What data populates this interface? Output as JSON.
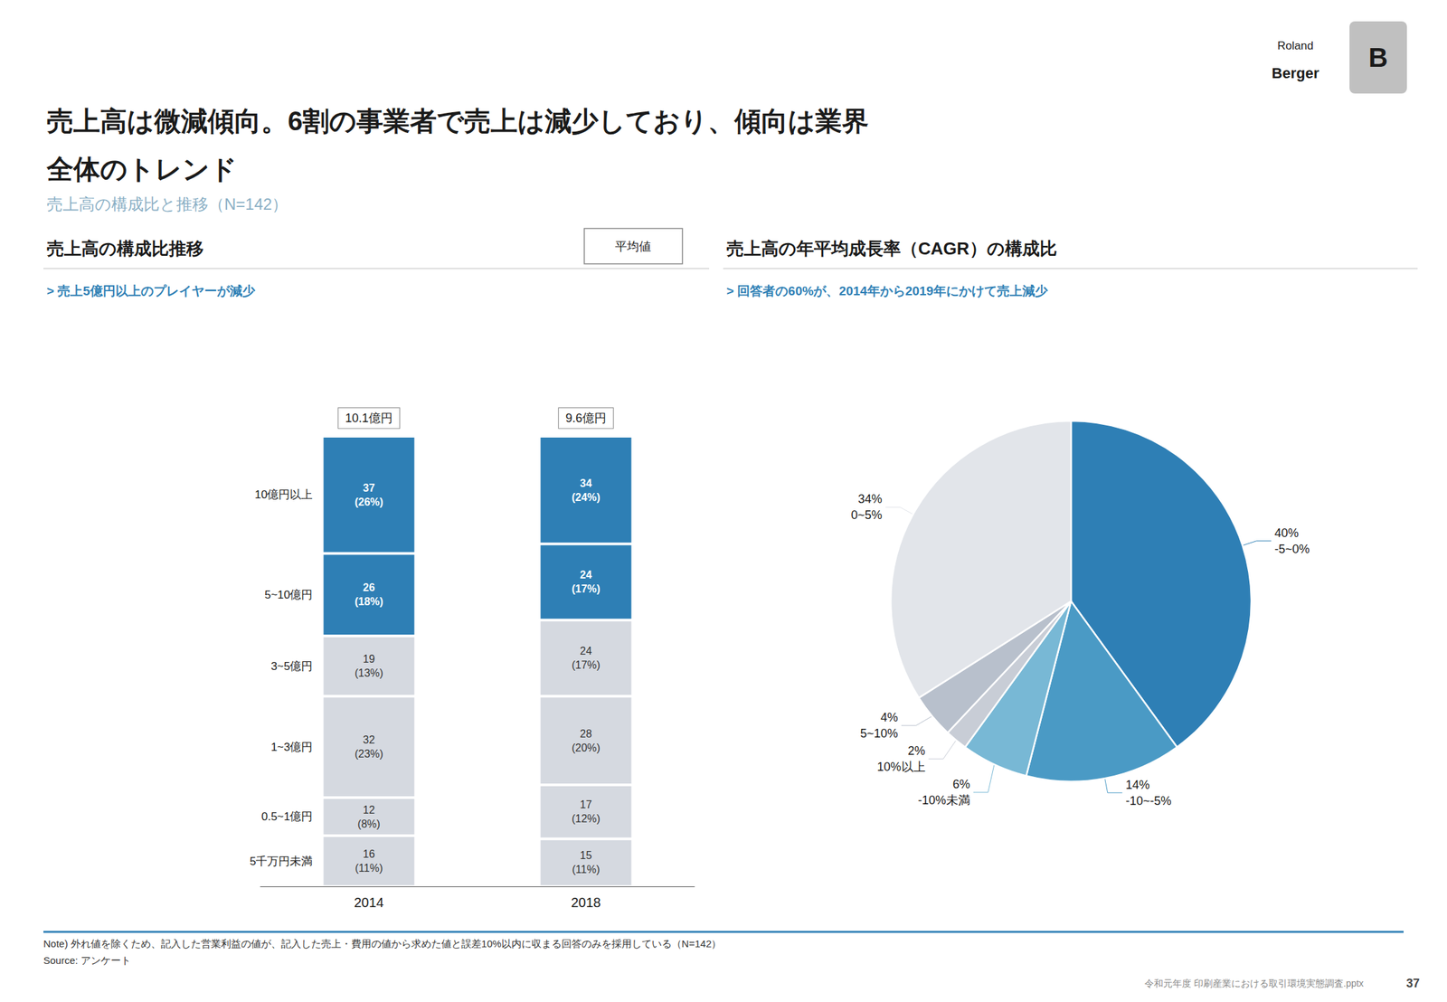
{
  "title": "売上高は微減傾向。6割の事業者で売上は減少しており、傾向は業界\n全体のトレンド",
  "subtitle": "売上高の構成比と推移（N=142）",
  "annotations": [
    "Roland",
    "Berger",
    "B",
    "Note) 外れ値を除くため、記入した営業利益の値が、記入した売上・費用の値から求めた値と誤差10%以内に収まる回答のみを採用している（N=142）",
    "Source: アンケート",
    "令和元年度 印刷産業における取引環境実態調査.pptx",
    "37"
  ],
  "chart_data": [
    {
      "type": "bar",
      "stacked": true,
      "title": "売上高の構成比推移",
      "subtitle": "> 売上5億円以上のプレイヤーが減少",
      "annotations": [
        "平均値",
        {
          "text": "10.1億円",
          "category": "2014"
        },
        {
          "text": "9.6億円",
          "category": "2018"
        }
      ],
      "categories": [
        "2014",
        "2018"
      ],
      "series": [
        {
          "name": "10億円以上",
          "color": "#2e7fb5",
          "values": [
            37,
            34
          ],
          "value_labels": [
            "37\n(26%)",
            "34\n(24%)"
          ]
        },
        {
          "name": "5~10億円",
          "color": "#2e7fb5",
          "values": [
            26,
            24
          ],
          "value_labels": [
            "26\n(18%)",
            "24\n(17%)"
          ]
        },
        {
          "name": "3~5億円",
          "color": "#d5d9e0",
          "values": [
            19,
            24
          ],
          "value_labels": [
            "19\n(13%)",
            "24\n(17%)"
          ]
        },
        {
          "name": "1~3億円",
          "color": "#d5d9e0",
          "values": [
            32,
            28
          ],
          "value_labels": [
            "32\n(23%)",
            "28\n(20%)"
          ]
        },
        {
          "name": "0.5~1億円",
          "color": "#d5d9e0",
          "values": [
            12,
            17
          ],
          "value_labels": [
            "12\n(8%)",
            "17\n(12%)"
          ]
        },
        {
          "name": "5千万円未満",
          "color": "#d5d9e0",
          "values": [
            16,
            15
          ],
          "value_labels": [
            "16\n(11%)",
            "15\n(11%)"
          ]
        }
      ],
      "data_labels": true,
      "ylim": [
        0,
        170
      ],
      "tick_labels": "x",
      "grid": false
    },
    {
      "type": "pie",
      "title": "売上高の年平均成長率（CAGR）の構成比",
      "subtitle": "> 回答者の60%が、2014年から2019年にかけて売上減少",
      "categories": [
        "-5~0%",
        "-10~-5%",
        "-10%未満",
        "10%以上",
        "5~10%",
        "0~5%"
      ],
      "values": [
        40,
        14,
        6,
        2,
        4,
        34
      ],
      "value_labels": [
        "40%",
        "14%",
        "6%",
        "2%",
        "4%",
        "34%"
      ],
      "colors": [
        "#2e7fb5",
        "#4a9ac5",
        "#78b8d5",
        "#c8cdd6",
        "#b8c0cc",
        "#e2e5ea"
      ],
      "data_labels": true
    }
  ]
}
